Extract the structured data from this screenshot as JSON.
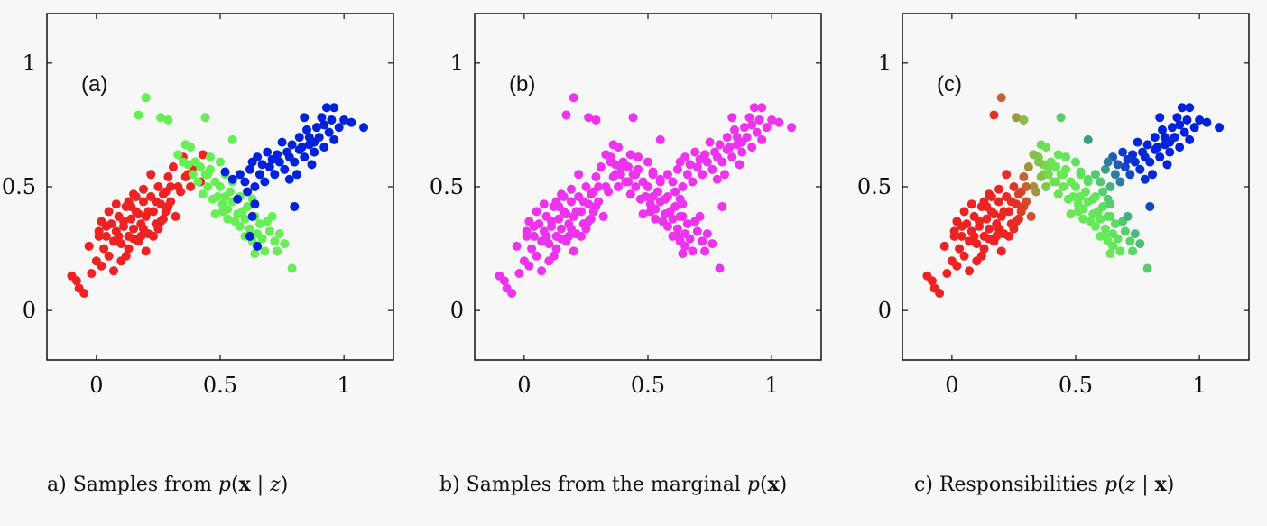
{
  "captions": {
    "a": {
      "prefix": "a) Samples from ",
      "p": "p",
      "open": "(",
      "x": "x",
      "sep": " | ",
      "z": "z",
      "close": ")"
    },
    "b": {
      "prefix": "b) Samples from the marginal ",
      "p": "p",
      "open": "(",
      "x": "x",
      "close": ")"
    },
    "c": {
      "prefix": "c) Responsibilities ",
      "p": "p",
      "open": "(",
      "z": "z",
      "sep": " | ",
      "x": "x",
      "close": ")"
    }
  },
  "colors": {
    "red": "#ee2222",
    "green": "#66ee55",
    "blue": "#0022dd",
    "magenta": "#ee33ee",
    "axis": "#111111"
  },
  "chart_data": [
    {
      "type": "scatter",
      "panel_label": "(a)",
      "xlim": [
        -0.2,
        1.2
      ],
      "ylim": [
        -0.2,
        1.2
      ],
      "x_ticks": [
        0,
        0.5,
        1
      ],
      "x_tick_labels": [
        "0",
        "0.5",
        "1"
      ],
      "y_ticks": [
        0,
        0.5,
        1
      ],
      "y_tick_labels": [
        "0",
        "0.5",
        "1"
      ],
      "grid": false,
      "coloring": "by component (red, green, blue)",
      "series": [
        {
          "color": "red",
          "points": [
            [
              -0.1,
              0.14
            ],
            [
              -0.07,
              0.09
            ],
            [
              -0.05,
              0.07
            ],
            [
              -0.08,
              0.12
            ],
            [
              -0.02,
              0.15
            ],
            [
              0.0,
              0.2
            ],
            [
              0.02,
              0.18
            ],
            [
              -0.03,
              0.26
            ],
            [
              0.01,
              0.3
            ],
            [
              0.03,
              0.25
            ],
            [
              0.05,
              0.22
            ],
            [
              0.04,
              0.3
            ],
            [
              0.07,
              0.28
            ],
            [
              0.06,
              0.35
            ],
            [
              0.08,
              0.32
            ],
            [
              0.1,
              0.27
            ],
            [
              0.09,
              0.38
            ],
            [
              0.11,
              0.34
            ],
            [
              0.12,
              0.42
            ],
            [
              0.13,
              0.3
            ],
            [
              0.14,
              0.37
            ],
            [
              0.15,
              0.33
            ],
            [
              0.16,
              0.4
            ],
            [
              0.17,
              0.28
            ],
            [
              0.18,
              0.35
            ],
            [
              0.19,
              0.44
            ],
            [
              0.2,
              0.38
            ],
            [
              0.21,
              0.31
            ],
            [
              0.22,
              0.46
            ],
            [
              0.23,
              0.4
            ],
            [
              0.24,
              0.35
            ],
            [
              0.25,
              0.5
            ],
            [
              0.26,
              0.43
            ],
            [
              0.27,
              0.37
            ],
            [
              0.28,
              0.48
            ],
            [
              0.29,
              0.54
            ],
            [
              0.3,
              0.44
            ],
            [
              0.31,
              0.58
            ],
            [
              0.33,
              0.5
            ],
            [
              0.35,
              0.62
            ],
            [
              0.37,
              0.55
            ],
            [
              0.4,
              0.6
            ],
            [
              0.02,
              0.36
            ],
            [
              0.05,
              0.4
            ],
            [
              0.1,
              0.2
            ],
            [
              0.13,
              0.25
            ],
            [
              0.08,
              0.43
            ],
            [
              0.15,
              0.47
            ],
            [
              0.18,
              0.3
            ],
            [
              0.2,
              0.24
            ],
            [
              0.23,
              0.3
            ],
            [
              0.26,
              0.36
            ],
            [
              0.12,
              0.22
            ],
            [
              0.07,
              0.16
            ],
            [
              0.16,
              0.46
            ],
            [
              0.22,
              0.55
            ],
            [
              0.28,
              0.4
            ],
            [
              0.32,
              0.38
            ],
            [
              0.34,
              0.48
            ],
            [
              0.43,
              0.63
            ],
            [
              0.38,
              0.5
            ],
            [
              0.01,
              0.32
            ],
            [
              0.11,
              0.36
            ],
            [
              0.14,
              0.42
            ],
            [
              0.17,
              0.39
            ],
            [
              0.19,
              0.33
            ],
            [
              0.21,
              0.4
            ],
            [
              0.24,
              0.44
            ],
            [
              0.27,
              0.47
            ],
            [
              0.09,
              0.3
            ],
            [
              0.04,
              0.34
            ],
            [
              0.13,
              0.44
            ],
            [
              0.15,
              0.29
            ],
            [
              0.19,
              0.49
            ],
            [
              0.25,
              0.33
            ],
            [
              0.29,
              0.42
            ],
            [
              0.3,
              0.5
            ],
            [
              0.36,
              0.54
            ],
            [
              0.39,
              0.58
            ],
            [
              0.42,
              0.52
            ]
          ]
        },
        {
          "color": "green",
          "points": [
            [
              0.17,
              0.79
            ],
            [
              0.2,
              0.86
            ],
            [
              0.26,
              0.78
            ],
            [
              0.29,
              0.77
            ],
            [
              0.44,
              0.78
            ],
            [
              0.55,
              0.69
            ],
            [
              0.33,
              0.63
            ],
            [
              0.36,
              0.67
            ],
            [
              0.38,
              0.66
            ],
            [
              0.4,
              0.6
            ],
            [
              0.42,
              0.58
            ],
            [
              0.44,
              0.55
            ],
            [
              0.46,
              0.57
            ],
            [
              0.48,
              0.52
            ],
            [
              0.5,
              0.5
            ],
            [
              0.52,
              0.55
            ],
            [
              0.54,
              0.48
            ],
            [
              0.45,
              0.5
            ],
            [
              0.47,
              0.45
            ],
            [
              0.49,
              0.46
            ],
            [
              0.51,
              0.43
            ],
            [
              0.53,
              0.41
            ],
            [
              0.55,
              0.44
            ],
            [
              0.57,
              0.39
            ],
            [
              0.59,
              0.4
            ],
            [
              0.56,
              0.36
            ],
            [
              0.58,
              0.34
            ],
            [
              0.6,
              0.37
            ],
            [
              0.62,
              0.33
            ],
            [
              0.64,
              0.38
            ],
            [
              0.66,
              0.35
            ],
            [
              0.6,
              0.3
            ],
            [
              0.63,
              0.28
            ],
            [
              0.65,
              0.31
            ],
            [
              0.67,
              0.29
            ],
            [
              0.68,
              0.24
            ],
            [
              0.7,
              0.32
            ],
            [
              0.72,
              0.28
            ],
            [
              0.74,
              0.31
            ],
            [
              0.76,
              0.27
            ],
            [
              0.73,
              0.24
            ],
            [
              0.79,
              0.17
            ],
            [
              0.64,
              0.23
            ],
            [
              0.53,
              0.37
            ],
            [
              0.51,
              0.4
            ],
            [
              0.43,
              0.47
            ],
            [
              0.41,
              0.52
            ],
            [
              0.39,
              0.55
            ],
            [
              0.37,
              0.59
            ],
            [
              0.46,
              0.62
            ],
            [
              0.5,
              0.6
            ],
            [
              0.48,
              0.39
            ],
            [
              0.55,
              0.52
            ],
            [
              0.58,
              0.46
            ],
            [
              0.61,
              0.42
            ],
            [
              0.63,
              0.45
            ],
            [
              0.69,
              0.36
            ],
            [
              0.71,
              0.38
            ],
            [
              0.35,
              0.6
            ],
            [
              0.45,
              0.55
            ],
            [
              0.52,
              0.46
            ]
          ]
        },
        {
          "color": "blue",
          "points": [
            [
              0.52,
              0.56
            ],
            [
              0.55,
              0.53
            ],
            [
              0.58,
              0.55
            ],
            [
              0.6,
              0.52
            ],
            [
              0.62,
              0.57
            ],
            [
              0.64,
              0.5
            ],
            [
              0.66,
              0.55
            ],
            [
              0.68,
              0.52
            ],
            [
              0.7,
              0.58
            ],
            [
              0.72,
              0.55
            ],
            [
              0.74,
              0.6
            ],
            [
              0.76,
              0.57
            ],
            [
              0.78,
              0.62
            ],
            [
              0.8,
              0.6
            ],
            [
              0.82,
              0.65
            ],
            [
              0.84,
              0.62
            ],
            [
              0.86,
              0.67
            ],
            [
              0.88,
              0.64
            ],
            [
              0.9,
              0.7
            ],
            [
              0.92,
              0.66
            ],
            [
              0.94,
              0.72
            ],
            [
              0.96,
              0.69
            ],
            [
              0.98,
              0.74
            ],
            [
              1.0,
              0.77
            ],
            [
              1.03,
              0.76
            ],
            [
              1.08,
              0.74
            ],
            [
              0.93,
              0.82
            ],
            [
              0.96,
              0.82
            ],
            [
              0.91,
              0.78
            ],
            [
              0.85,
              0.73
            ],
            [
              0.82,
              0.7
            ],
            [
              0.79,
              0.67
            ],
            [
              0.77,
              0.64
            ],
            [
              0.75,
              0.68
            ],
            [
              0.73,
              0.63
            ],
            [
              0.71,
              0.61
            ],
            [
              0.69,
              0.64
            ],
            [
              0.67,
              0.59
            ],
            [
              0.65,
              0.62
            ],
            [
              0.63,
              0.6
            ],
            [
              0.61,
              0.48
            ],
            [
              0.64,
              0.43
            ],
            [
              0.63,
              0.38
            ],
            [
              0.65,
              0.26
            ],
            [
              0.62,
              0.3
            ],
            [
              0.8,
              0.42
            ],
            [
              0.57,
              0.45
            ],
            [
              0.87,
              0.59
            ],
            [
              0.89,
              0.74
            ],
            [
              0.95,
              0.77
            ],
            [
              0.84,
              0.78
            ],
            [
              0.81,
              0.55
            ],
            [
              0.78,
              0.53
            ],
            [
              0.88,
              0.68
            ],
            [
              0.92,
              0.75
            ],
            [
              0.86,
              0.7
            ],
            [
              0.83,
              0.66
            ]
          ]
        }
      ]
    },
    {
      "type": "scatter",
      "panel_label": "(b)",
      "xlim": [
        -0.2,
        1.2
      ],
      "ylim": [
        -0.2,
        1.2
      ],
      "x_ticks": [
        0,
        0.5,
        1
      ],
      "x_tick_labels": [
        "0",
        "0.5",
        "1"
      ],
      "y_ticks": [
        0,
        0.5,
        1
      ],
      "y_tick_labels": [
        "0",
        "0.5",
        "1"
      ],
      "grid": false,
      "coloring": "all points magenta (same samples as panel a)",
      "series_from": 0
    },
    {
      "type": "scatter",
      "panel_label": "(c)",
      "xlim": [
        -0.2,
        1.2
      ],
      "ylim": [
        -0.2,
        1.2
      ],
      "x_ticks": [
        0,
        0.5,
        1
      ],
      "x_tick_labels": [
        "0",
        "0.5",
        "1"
      ],
      "y_ticks": [
        0,
        0.5,
        1
      ],
      "y_tick_labels": [
        "0",
        "0.5",
        "1"
      ],
      "grid": false,
      "coloring": "RGB mixture of component responsibilities (same samples as panel a)",
      "series_from": 0
    }
  ]
}
